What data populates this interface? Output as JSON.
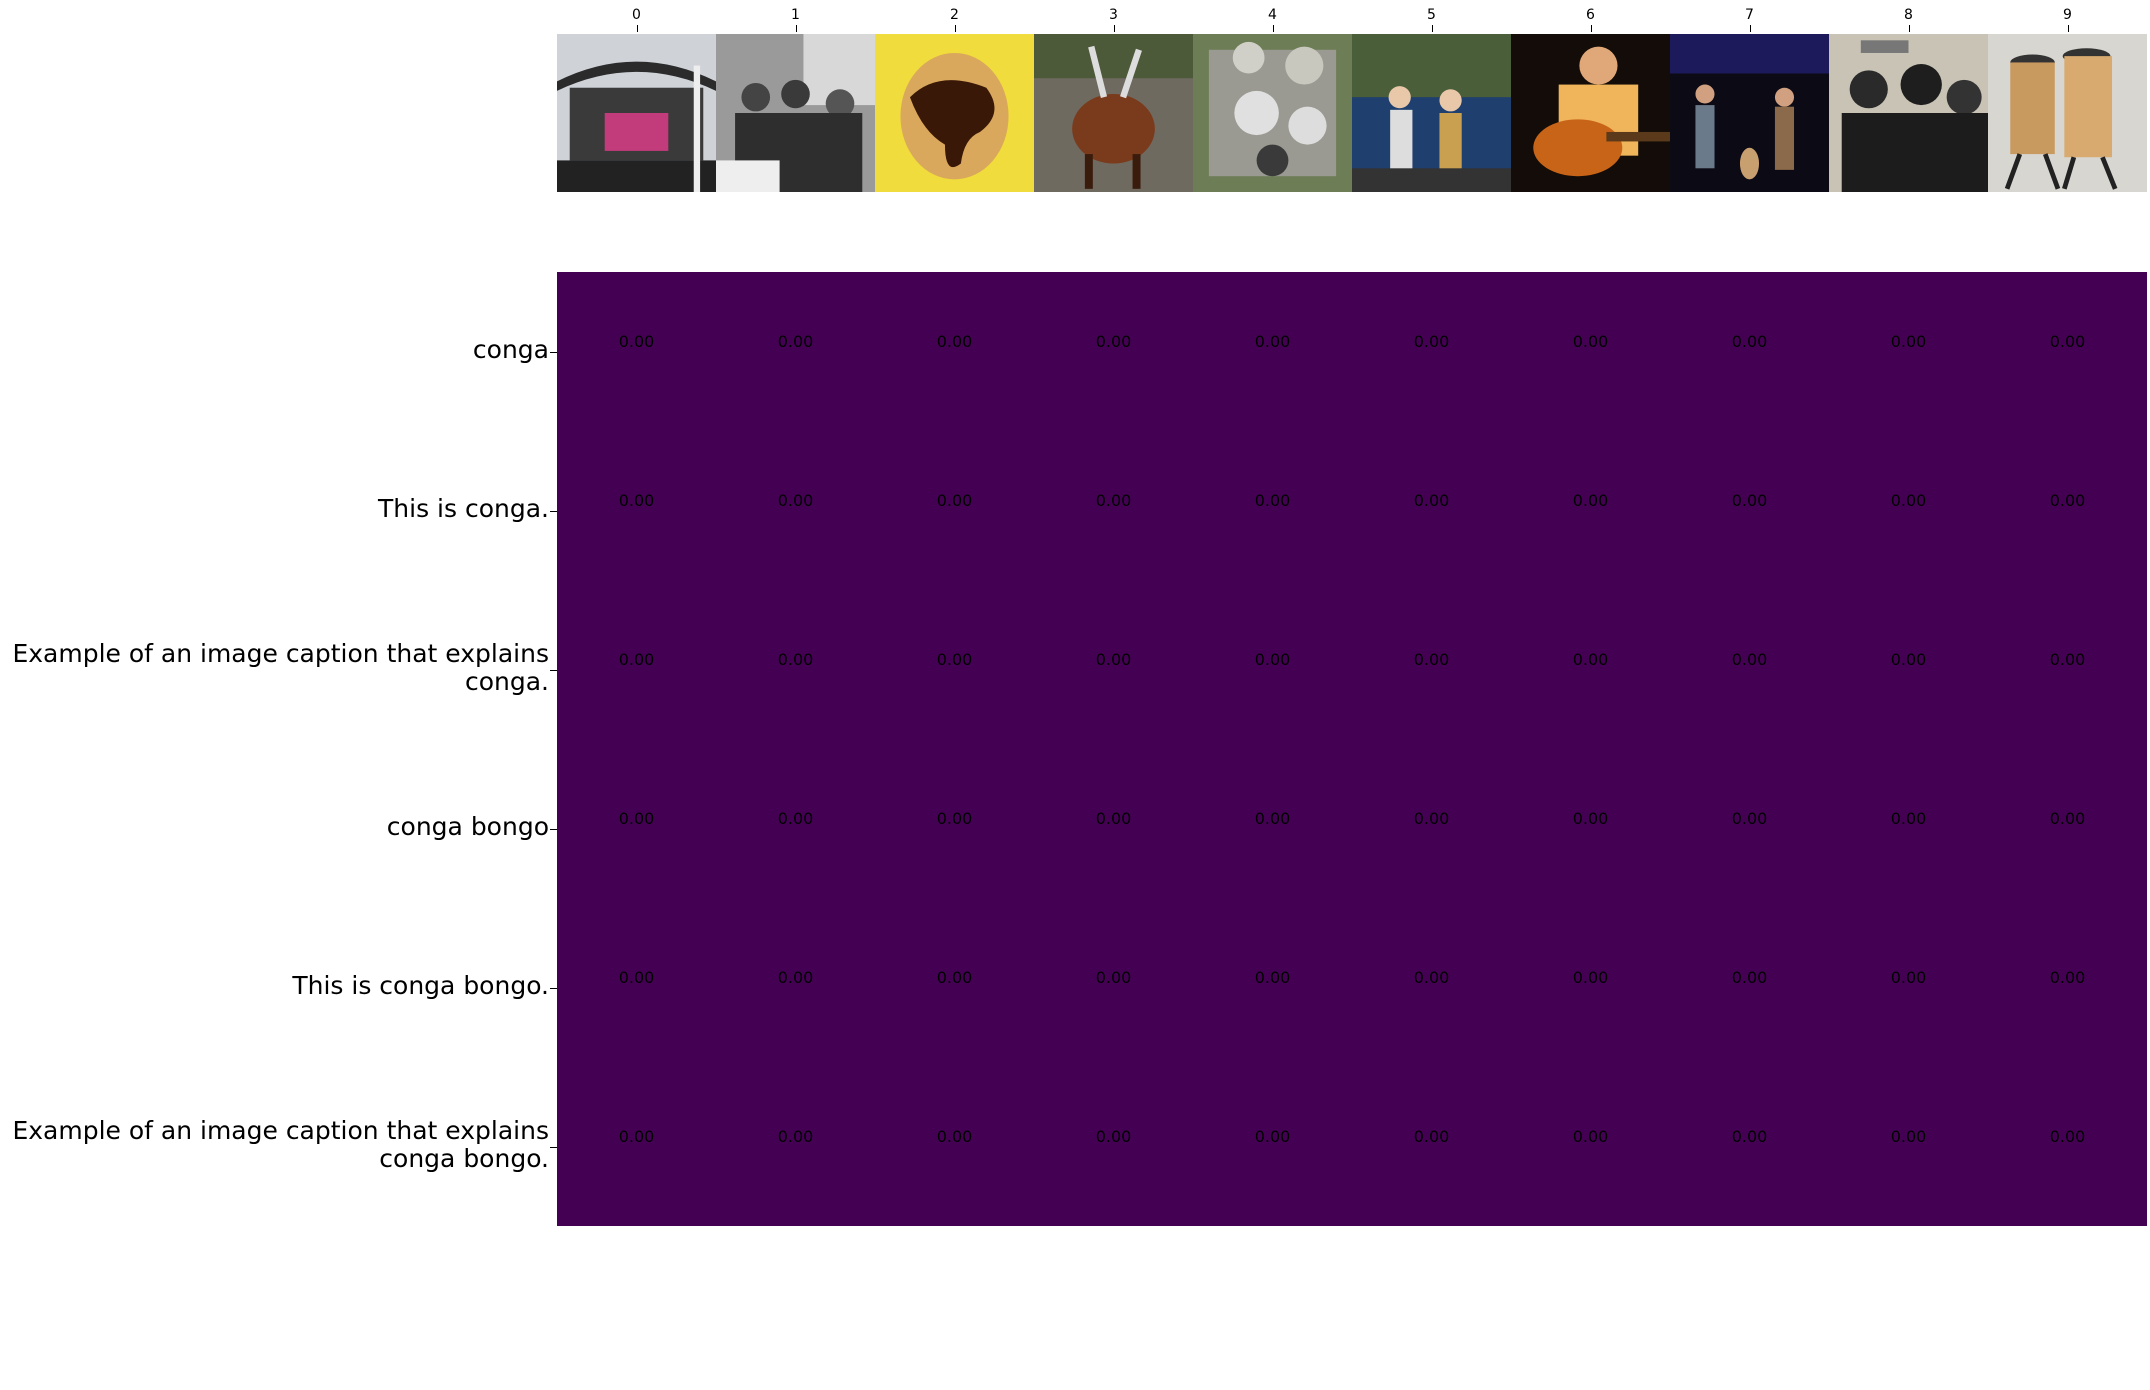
{
  "chart_data": {
    "type": "heatmap",
    "columns": [
      "0",
      "1",
      "2",
      "3",
      "4",
      "5",
      "6",
      "7",
      "8",
      "9"
    ],
    "column_images": [
      "concert-stage-icon",
      "black-white-crowd-icon",
      "chocolate-egg-icon",
      "antelope-icon",
      "drum-kit-icon",
      "band-on-stage-icon",
      "guitarist-icon",
      "live-band-icon",
      "vintage-band-photo-icon",
      "conga-drums-icon"
    ],
    "rows": [
      [
        "conga"
      ],
      [
        "This is conga."
      ],
      [
        "Example of an image caption that explains",
        "conga."
      ],
      [
        "conga bongo"
      ],
      [
        "This is conga bongo."
      ],
      [
        "Example of an image caption that explains",
        "conga bongo."
      ]
    ],
    "values": [
      [
        0,
        0,
        0,
        0,
        0,
        0,
        0,
        0,
        0,
        0
      ],
      [
        0,
        0,
        0,
        0,
        0,
        0,
        0,
        0,
        0,
        0
      ],
      [
        0,
        0,
        0,
        0,
        0,
        0,
        0,
        0,
        0,
        0
      ],
      [
        0,
        0,
        0,
        0,
        0,
        0,
        0,
        0,
        0,
        0
      ],
      [
        0,
        0,
        0,
        0,
        0,
        0,
        0,
        0,
        0,
        0
      ],
      [
        0,
        0,
        0,
        0,
        0,
        0,
        0,
        0,
        0,
        0
      ]
    ],
    "value_format": "0.00",
    "colormap": "viridis",
    "cell_color": "#440154",
    "annotation_color": "#000000"
  }
}
